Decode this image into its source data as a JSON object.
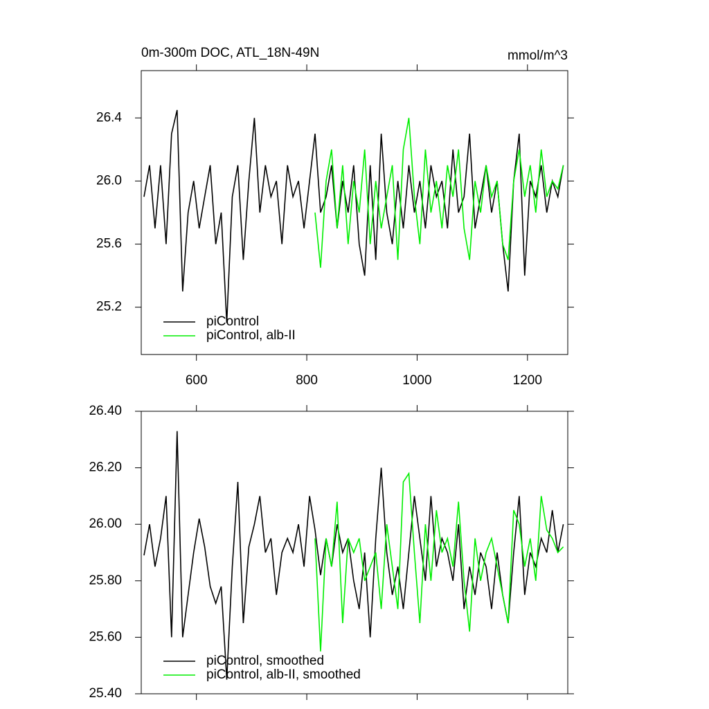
{
  "chart_data": [
    {
      "type": "line",
      "title": "0m-300m DOC, ATL_18N-49N",
      "unit_label": "mmol/m^3",
      "xlim": [
        500,
        1273
      ],
      "xticks": [
        600,
        800,
        1000,
        1200
      ],
      "show_xtick_labels": true,
      "ylim": [
        24.9,
        26.7
      ],
      "yticks": [
        25.2,
        25.6,
        {
          "value": 26,
          "label": "26.0"
        },
        26.4
      ],
      "legend": "lower left",
      "x": [
        505,
        515,
        525,
        535,
        545,
        555,
        565,
        575,
        585,
        595,
        605,
        615,
        625,
        635,
        645,
        655,
        665,
        675,
        685,
        695,
        705,
        715,
        725,
        735,
        745,
        755,
        765,
        775,
        785,
        795,
        805,
        815,
        825,
        835,
        845,
        855,
        865,
        875,
        885,
        895,
        905,
        915,
        925,
        935,
        945,
        955,
        965,
        975,
        985,
        995,
        1005,
        1015,
        1025,
        1035,
        1045,
        1055,
        1065,
        1075,
        1085,
        1095,
        1105,
        1115,
        1125,
        1135,
        1145,
        1155,
        1165,
        1175,
        1185,
        1195,
        1205,
        1215,
        1225,
        1235,
        1245,
        1255,
        1265
      ],
      "series": [
        {
          "name": "piControl",
          "color": "#000000",
          "values": [
            25.9,
            26.1,
            25.7,
            26.1,
            25.6,
            26.3,
            26.45,
            25.3,
            25.8,
            26.0,
            25.7,
            25.9,
            26.1,
            25.6,
            25.8,
            25.1,
            25.9,
            26.1,
            25.5,
            26.0,
            26.4,
            25.8,
            26.1,
            25.9,
            26.0,
            25.6,
            26.1,
            25.9,
            26.0,
            25.7,
            26.0,
            26.3,
            25.8,
            25.9,
            26.1,
            25.7,
            26.0,
            25.8,
            26.1,
            25.6,
            25.4,
            26.1,
            25.5,
            26.3,
            25.8,
            25.6,
            26.0,
            25.7,
            26.1,
            25.8,
            26.0,
            25.7,
            26.1,
            25.9,
            26.0,
            25.7,
            26.2,
            25.8,
            25.9,
            26.3,
            25.7,
            25.9,
            26.1,
            25.8,
            26.0,
            25.6,
            25.3,
            26.0,
            26.3,
            25.4,
            26.0,
            25.9,
            26.1,
            25.8,
            26.0,
            25.9,
            26.1
          ]
        },
        {
          "name": "piControl, alb-II",
          "color": "#00ee00",
          "values": [
            null,
            null,
            null,
            null,
            null,
            null,
            null,
            null,
            null,
            null,
            null,
            null,
            null,
            null,
            null,
            null,
            null,
            null,
            null,
            null,
            null,
            null,
            null,
            null,
            null,
            null,
            null,
            null,
            null,
            null,
            null,
            25.8,
            25.45,
            26.0,
            26.2,
            25.7,
            26.1,
            25.6,
            26.0,
            25.8,
            26.2,
            25.6,
            26.0,
            25.7,
            25.9,
            26.1,
            25.5,
            26.2,
            26.4,
            25.9,
            25.6,
            26.2,
            25.8,
            26.0,
            25.7,
            26.1,
            25.9,
            26.2,
            25.7,
            25.5,
            26.0,
            25.8,
            26.1,
            25.9,
            26.0,
            25.6,
            25.5,
            26.0,
            26.2,
            25.9,
            26.1,
            25.8,
            26.2,
            25.9,
            26.0,
            25.95,
            26.1
          ]
        }
      ]
    },
    {
      "type": "line",
      "xlim": [
        500,
        1273
      ],
      "xticks": [
        600,
        800,
        1000,
        1200
      ],
      "show_xtick_labels": false,
      "ylim": [
        25.4,
        26.4
      ],
      "yticks": [
        {
          "value": 25.4,
          "label": "25.40"
        },
        {
          "value": 25.6,
          "label": "25.60"
        },
        {
          "value": 25.8,
          "label": "25.80"
        },
        {
          "value": 26,
          "label": "26.00"
        },
        {
          "value": 26.2,
          "label": "26.20"
        },
        {
          "value": 26.4,
          "label": "26.40"
        }
      ],
      "legend": "lower left",
      "x": [
        505,
        515,
        525,
        535,
        545,
        555,
        565,
        575,
        585,
        595,
        605,
        615,
        625,
        635,
        645,
        655,
        665,
        675,
        685,
        695,
        705,
        715,
        725,
        735,
        745,
        755,
        765,
        775,
        785,
        795,
        805,
        815,
        825,
        835,
        845,
        855,
        865,
        875,
        885,
        895,
        905,
        915,
        925,
        935,
        945,
        955,
        965,
        975,
        985,
        995,
        1005,
        1015,
        1025,
        1035,
        1045,
        1055,
        1065,
        1075,
        1085,
        1095,
        1105,
        1115,
        1125,
        1135,
        1145,
        1155,
        1165,
        1175,
        1185,
        1195,
        1205,
        1215,
        1225,
        1235,
        1245,
        1255,
        1265
      ],
      "series": [
        {
          "name": "piControl, smoothed",
          "color": "#000000",
          "values": [
            25.89,
            26.0,
            25.85,
            25.95,
            26.1,
            25.6,
            26.33,
            25.6,
            25.75,
            25.9,
            26.02,
            25.92,
            25.78,
            25.72,
            25.78,
            25.45,
            25.85,
            26.15,
            25.65,
            25.92,
            26.0,
            26.1,
            25.9,
            25.95,
            25.75,
            25.9,
            25.95,
            25.9,
            26.0,
            25.85,
            26.1,
            25.98,
            25.82,
            25.95,
            25.85,
            26.0,
            25.9,
            25.95,
            25.8,
            25.7,
            25.9,
            25.6,
            25.95,
            26.2,
            25.9,
            25.75,
            25.85,
            25.7,
            25.9,
            26.1,
            25.95,
            25.8,
            26.1,
            25.85,
            25.95,
            25.9,
            25.8,
            26.0,
            25.7,
            25.85,
            25.75,
            25.9,
            25.85,
            25.7,
            25.9,
            25.75,
            25.65,
            25.9,
            26.1,
            25.75,
            25.9,
            25.85,
            25.95,
            25.9,
            26.05,
            25.9,
            26.0
          ]
        },
        {
          "name": "piControl, alb-II, smoothed",
          "color": "#00ee00",
          "values": [
            null,
            null,
            null,
            null,
            null,
            null,
            null,
            null,
            null,
            null,
            null,
            null,
            null,
            null,
            null,
            null,
            null,
            null,
            null,
            null,
            null,
            null,
            null,
            null,
            null,
            null,
            null,
            null,
            null,
            null,
            null,
            25.95,
            25.55,
            25.95,
            25.85,
            26.08,
            25.65,
            25.95,
            25.9,
            25.95,
            25.8,
            25.85,
            25.9,
            25.7,
            26.0,
            25.85,
            25.7,
            26.15,
            26.18,
            25.9,
            25.65,
            26.0,
            25.8,
            26.05,
            25.9,
            25.95,
            25.85,
            26.08,
            25.8,
            25.62,
            25.95,
            25.8,
            25.9,
            25.95,
            25.85,
            25.75,
            25.65,
            26.05,
            26.0,
            25.85,
            25.95,
            25.8,
            26.1,
            25.98,
            25.95,
            25.9,
            25.92
          ]
        }
      ]
    }
  ]
}
